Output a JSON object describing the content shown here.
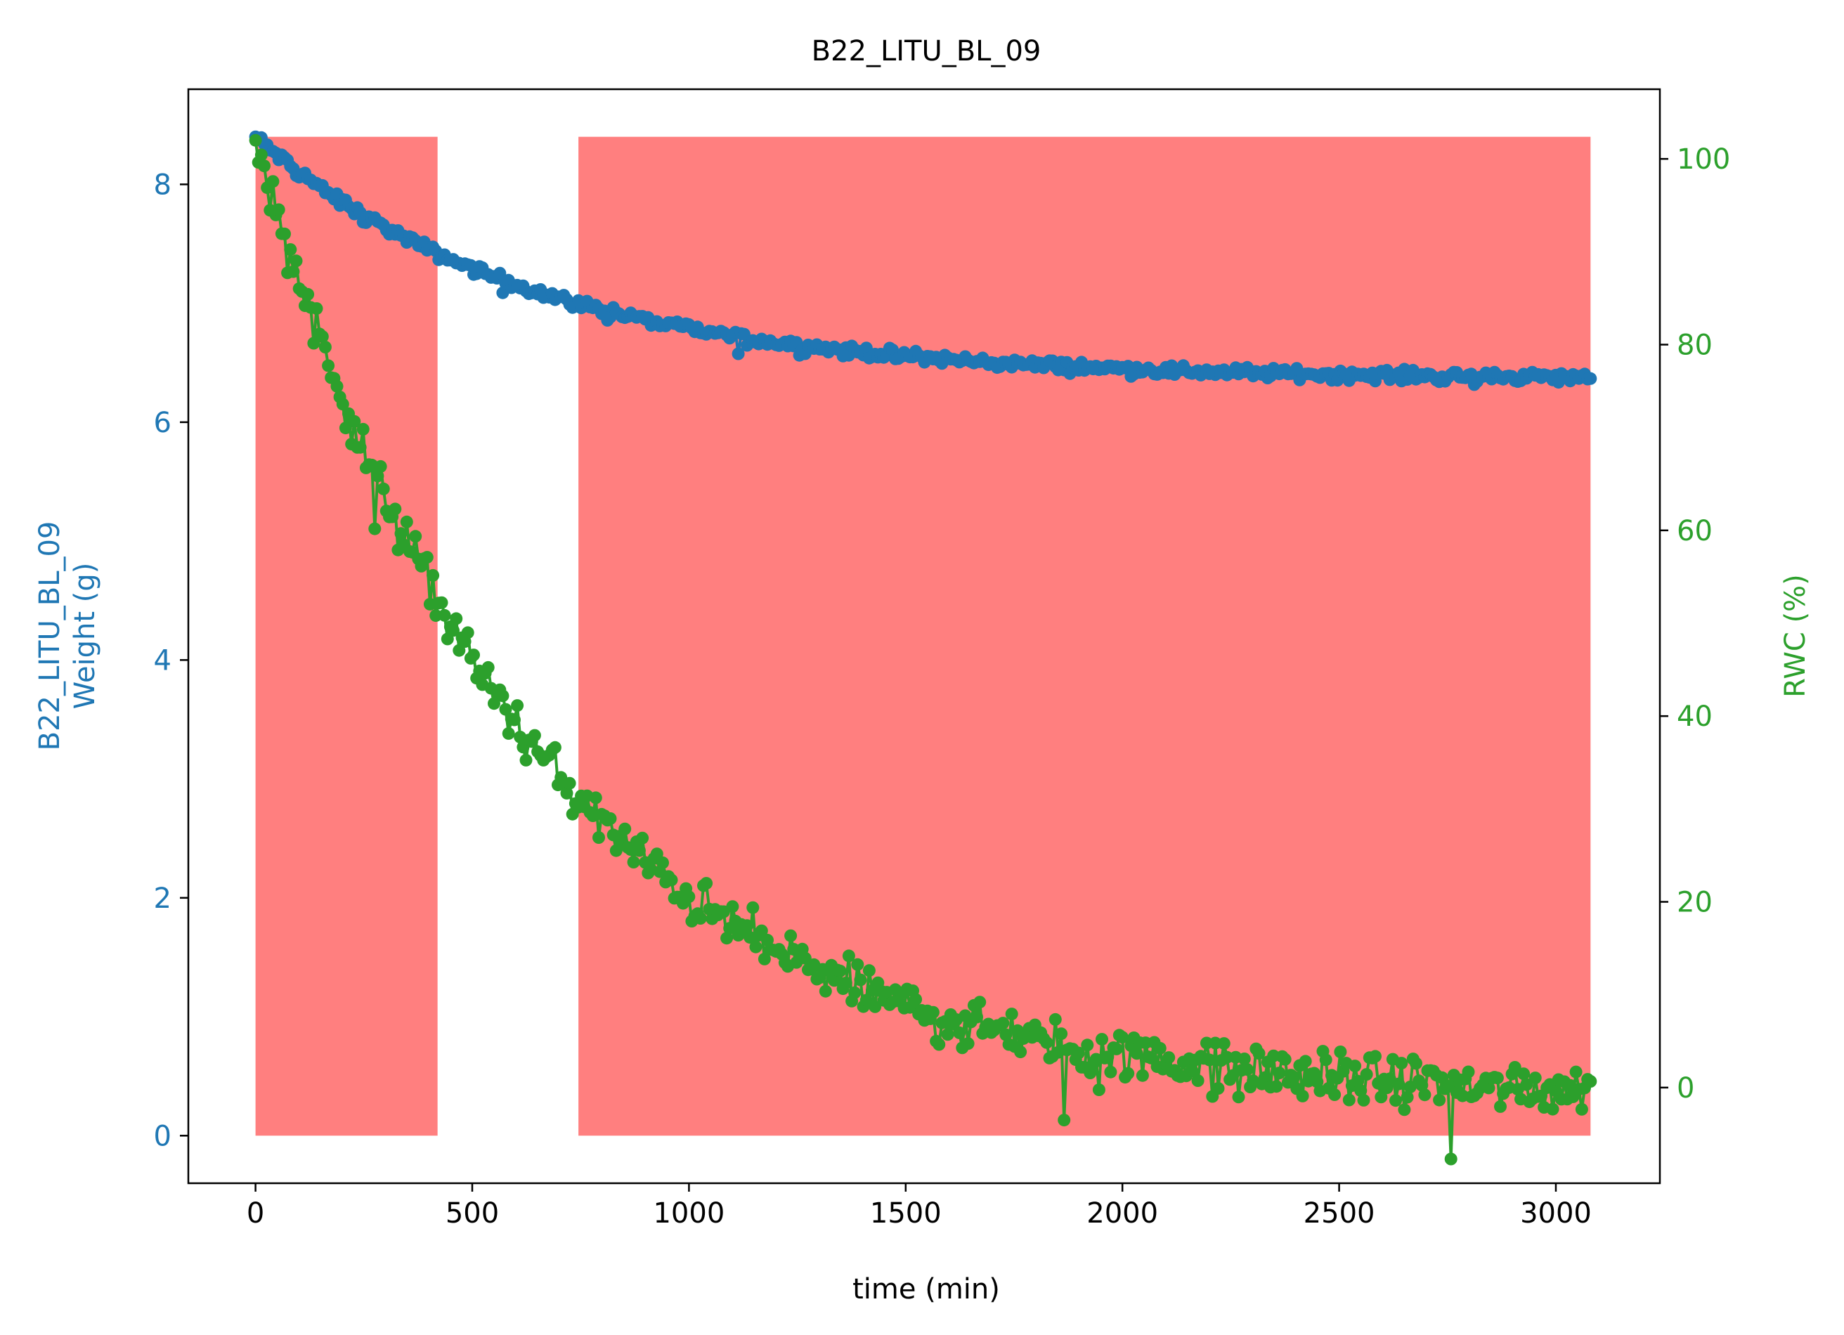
{
  "chart_data": {
    "type": "line",
    "title": "B22_LITU_BL_09",
    "xlabel": "time (min)",
    "ylabel_left_line1": "B22_LITU_BL_09",
    "ylabel_left_line2": "Weight (g)",
    "ylabel_right": "RWC (%)",
    "xlim": [
      -155,
      3240
    ],
    "ylim_left": [
      -0.4,
      8.8
    ],
    "ylim_right": [
      -10.3,
      107.5
    ],
    "x_ticks": [
      0,
      500,
      1000,
      1500,
      2000,
      2500,
      3000
    ],
    "y_left_ticks": [
      0,
      2,
      4,
      6,
      8
    ],
    "y_right_ticks": [
      0,
      20,
      40,
      60,
      80,
      100
    ],
    "grid": false,
    "colors": {
      "weight": "#1f77b4",
      "rwc": "#2ca02c",
      "shade": "#ff7f7f",
      "axis": "#000000"
    },
    "shaded_regions": [
      {
        "x_start": 0,
        "x_end": 420,
        "y_start": 0,
        "y_end": 8.4
      },
      {
        "x_start": 745,
        "x_end": 3080,
        "y_start": 0,
        "y_end": 8.4
      }
    ],
    "series": [
      {
        "axis": "left",
        "x_start": 0,
        "x_end": 3080,
        "n_points": 460,
        "curve": {
          "y_end": 6.36,
          "amplitude": 2.04,
          "tau_min": 640
        },
        "noise": 0.04,
        "key_points": [
          [
            0,
            8.4
          ],
          [
            500,
            7.3
          ],
          [
            1000,
            6.8
          ],
          [
            1500,
            6.65
          ],
          [
            2000,
            6.55
          ],
          [
            2500,
            6.5
          ],
          [
            3000,
            6.4
          ]
        ]
      },
      {
        "axis": "right",
        "x_start": 0,
        "x_end": 3080,
        "n_points": 460,
        "curve": {
          "y_end": -1.0,
          "amplitude": 103.0,
          "tau_min": 640
        },
        "noise": 2.2,
        "key_points": [
          [
            0,
            102
          ],
          [
            250,
            78
          ],
          [
            500,
            47
          ],
          [
            750,
            30
          ],
          [
            1000,
            20
          ],
          [
            1500,
            11
          ],
          [
            2000,
            5
          ],
          [
            2500,
            2
          ],
          [
            3000,
            0
          ]
        ]
      }
    ]
  }
}
